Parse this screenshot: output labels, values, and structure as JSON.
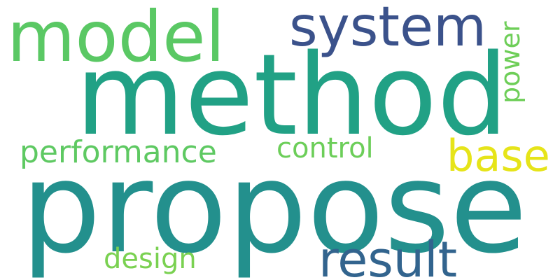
{
  "words": {
    "propose": {
      "text": "propose",
      "color": "#23908d"
    },
    "method": {
      "text": "method",
      "color": "#21a185"
    },
    "model": {
      "text": "model",
      "color": "#5ac864"
    },
    "system": {
      "text": "system",
      "color": "#3b528b"
    },
    "result": {
      "text": "result",
      "color": "#32648e"
    },
    "base": {
      "text": "base",
      "color": "#e6e419"
    },
    "performance": {
      "text": "performance",
      "color": "#5ec962"
    },
    "control": {
      "text": "control",
      "color": "#6cce59"
    },
    "design": {
      "text": "design",
      "color": "#7ad151"
    },
    "power": {
      "text": "power",
      "color": "#6ece58"
    }
  }
}
